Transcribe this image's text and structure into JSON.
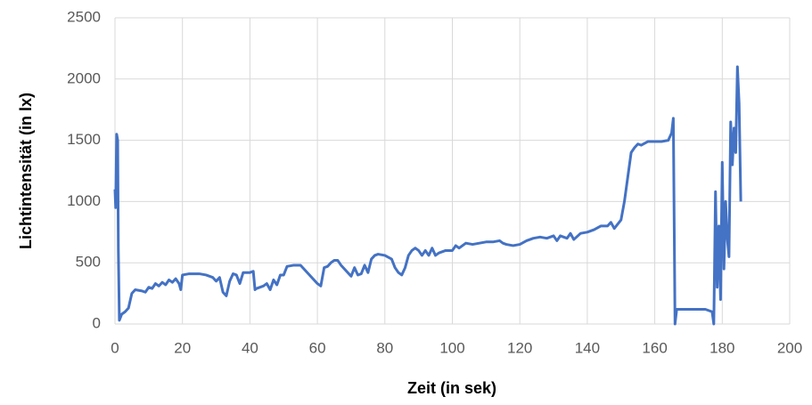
{
  "chart_data": {
    "type": "line",
    "x_label": "Zeit (in sek)",
    "y_label": "Lichtintensität (in lx)",
    "xlim": [
      0,
      200
    ],
    "xticks": [
      0,
      20,
      40,
      60,
      80,
      100,
      120,
      140,
      160,
      180,
      200
    ],
    "ylim": [
      0,
      2500
    ],
    "yticks": [
      0,
      500,
      1000,
      1500,
      2000,
      2500
    ],
    "grid": true,
    "x": [
      0,
      0.2,
      0.5,
      0.8,
      1,
      1.3,
      2,
      3,
      4,
      5,
      6,
      8,
      9,
      10,
      11,
      12,
      13,
      14,
      15,
      16,
      17,
      18,
      19,
      19.5,
      20,
      22,
      25,
      27,
      28,
      29,
      30,
      31,
      32,
      33,
      34,
      35,
      36,
      37,
      38,
      40,
      41,
      41.5,
      42,
      44,
      45,
      46,
      47,
      48,
      49,
      50,
      51,
      53,
      55,
      56,
      57,
      58,
      59,
      60,
      61,
      62,
      63,
      64,
      65,
      66,
      67,
      68,
      69,
      70,
      71,
      72,
      73,
      74,
      75,
      76,
      77,
      78,
      80,
      82,
      83,
      84,
      85,
      86,
      87,
      88,
      89,
      90,
      91,
      92,
      93,
      94,
      95,
      96,
      98,
      100,
      101,
      102,
      104,
      106,
      108,
      110,
      112,
      114,
      115,
      116,
      118,
      120,
      122,
      124,
      126,
      128,
      130,
      131,
      132,
      134,
      135,
      136,
      138,
      140,
      142,
      144,
      146,
      147,
      148,
      150,
      151,
      152,
      153,
      154,
      155,
      156,
      158,
      160,
      162,
      164,
      165,
      165.5,
      166,
      166.5,
      168,
      172,
      175,
      177,
      177.5,
      178,
      178.5,
      179,
      179.5,
      180,
      180.5,
      181,
      181.5,
      182,
      182.5,
      183,
      183.5,
      184,
      184.5,
      185,
      185.5
    ],
    "series": [
      {
        "name": "Lichtintensität",
        "color": "#4472c4",
        "values": [
          1100,
          950,
          1550,
          1500,
          600,
          30,
          80,
          100,
          130,
          250,
          280,
          270,
          260,
          300,
          290,
          330,
          310,
          340,
          320,
          360,
          340,
          370,
          330,
          280,
          400,
          410,
          410,
          400,
          390,
          380,
          350,
          380,
          260,
          230,
          350,
          410,
          400,
          330,
          420,
          420,
          430,
          280,
          290,
          310,
          330,
          280,
          360,
          320,
          400,
          400,
          470,
          480,
          480,
          450,
          420,
          390,
          360,
          330,
          310,
          460,
          470,
          500,
          520,
          520,
          480,
          450,
          420,
          390,
          460,
          400,
          410,
          480,
          420,
          530,
          560,
          570,
          560,
          530,
          460,
          420,
          400,
          460,
          560,
          600,
          620,
          600,
          560,
          600,
          560,
          620,
          560,
          580,
          600,
          600,
          640,
          620,
          660,
          650,
          660,
          670,
          670,
          680,
          660,
          650,
          640,
          650,
          680,
          700,
          710,
          700,
          720,
          680,
          720,
          700,
          740,
          690,
          740,
          750,
          770,
          800,
          800,
          830,
          780,
          850,
          1000,
          1200,
          1400,
          1440,
          1470,
          1460,
          1490,
          1490,
          1490,
          1500,
          1560,
          1680,
          0,
          120,
          120,
          120,
          120,
          100,
          0,
          1080,
          300,
          800,
          200,
          1320,
          450,
          1000,
          700,
          550,
          1650,
          1300,
          1600,
          1400,
          2100,
          1800,
          1000
        ]
      }
    ]
  }
}
